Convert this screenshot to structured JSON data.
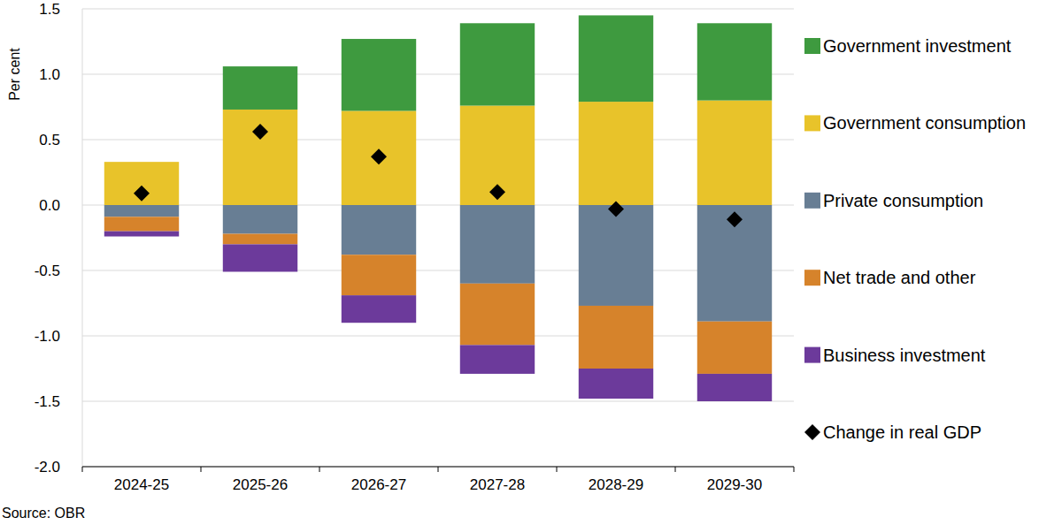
{
  "chart_data": {
    "type": "bar",
    "stacked": true,
    "y_label": "Per cent",
    "source": "Source: OBR",
    "categories": [
      "2024-25",
      "2025-26",
      "2026-27",
      "2027-28",
      "2028-29",
      "2029-30"
    ],
    "series": [
      {
        "name": "Government investment",
        "color": "#3e9a3f",
        "values": [
          0.0,
          0.33,
          0.55,
          0.63,
          0.66,
          0.59
        ]
      },
      {
        "name": "Government consumption",
        "color": "#e8c32a",
        "values": [
          0.33,
          0.73,
          0.72,
          0.76,
          0.79,
          0.8
        ]
      },
      {
        "name": "Private consumption",
        "color": "#687e94",
        "values": [
          -0.09,
          -0.22,
          -0.38,
          -0.6,
          -0.77,
          -0.89
        ]
      },
      {
        "name": "Net trade and other",
        "color": "#d6832b",
        "values": [
          -0.11,
          -0.08,
          -0.31,
          -0.47,
          -0.48,
          -0.4
        ]
      },
      {
        "name": "Business investment",
        "color": "#6c3a9b",
        "values": [
          -0.04,
          -0.21,
          -0.21,
          -0.22,
          -0.23,
          -0.21
        ]
      },
      {
        "name": "Change in real GDP",
        "type": "scatter",
        "marker": "diamond",
        "color": "#000000",
        "values": [
          0.09,
          0.56,
          0.37,
          0.1,
          -0.03,
          -0.11
        ]
      }
    ],
    "ylim": [
      -2.0,
      1.5
    ],
    "yticks": [
      {
        "value": -2,
        "label": "-2.0"
      },
      -1.5,
      {
        "value": -1,
        "label": "-1.0"
      },
      -0.5,
      {
        "value": 0,
        "label": "0.0"
      },
      0.5,
      {
        "value": 1,
        "label": "1.0"
      },
      1.5
    ],
    "grid": true,
    "legend": "right"
  }
}
